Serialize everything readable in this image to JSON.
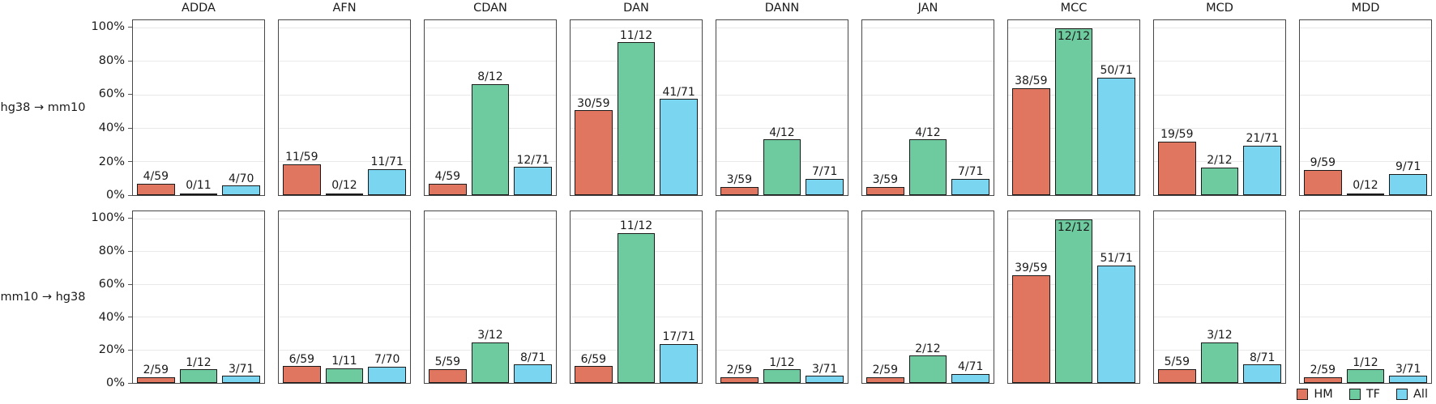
{
  "chart_data": {
    "type": "bar",
    "title": "",
    "description_visible_text_only": true,
    "facet_row_labels": [
      "hg38 → mm10",
      "mm10 → hg38"
    ],
    "columns": [
      "ADDA",
      "AFN",
      "CDAN",
      "DAN",
      "DANN",
      "JAN",
      "MCC",
      "MCD",
      "MDD"
    ],
    "series": [
      {
        "name": "HM",
        "color": "#e0765f"
      },
      {
        "name": "TF",
        "color": "#6ecba0"
      },
      {
        "name": "All",
        "color": "#7ad5f1"
      }
    ],
    "y_ticks": [
      {
        "label": "100%",
        "value": 100
      },
      {
        "label": "80%",
        "value": 80
      },
      {
        "label": "60%",
        "value": 60
      },
      {
        "label": "40%",
        "value": 40
      },
      {
        "label": "20%",
        "value": 20
      },
      {
        "label": "0%",
        "value": 0
      }
    ],
    "ylim": [
      0,
      105
    ],
    "grid": true,
    "legend_position": "bottom-right",
    "bar_label_format": "successes/total",
    "rows": [
      {
        "label": "hg38 → mm10",
        "panels": [
          {
            "column": "ADDA",
            "bars": [
              {
                "label": "4/59",
                "num": 4,
                "den": 59
              },
              {
                "label": "0/11",
                "num": 0,
                "den": 11
              },
              {
                "label": "4/70",
                "num": 4,
                "den": 70
              }
            ]
          },
          {
            "column": "AFN",
            "bars": [
              {
                "label": "11/59",
                "num": 11,
                "den": 59
              },
              {
                "label": "0/12",
                "num": 0,
                "den": 12
              },
              {
                "label": "11/71",
                "num": 11,
                "den": 71
              }
            ]
          },
          {
            "column": "CDAN",
            "bars": [
              {
                "label": "4/59",
                "num": 4,
                "den": 59
              },
              {
                "label": "8/12",
                "num": 8,
                "den": 12
              },
              {
                "label": "12/71",
                "num": 12,
                "den": 71
              }
            ]
          },
          {
            "column": "DAN",
            "bars": [
              {
                "label": "30/59",
                "num": 30,
                "den": 59
              },
              {
                "label": "11/12",
                "num": 11,
                "den": 12
              },
              {
                "label": "41/71",
                "num": 41,
                "den": 71
              }
            ]
          },
          {
            "column": "DANN",
            "bars": [
              {
                "label": "3/59",
                "num": 3,
                "den": 59
              },
              {
                "label": "4/12",
                "num": 4,
                "den": 12
              },
              {
                "label": "7/71",
                "num": 7,
                "den": 71
              }
            ]
          },
          {
            "column": "JAN",
            "bars": [
              {
                "label": "3/59",
                "num": 3,
                "den": 59
              },
              {
                "label": "4/12",
                "num": 4,
                "den": 12
              },
              {
                "label": "7/71",
                "num": 7,
                "den": 71
              }
            ]
          },
          {
            "column": "MCC",
            "bars": [
              {
                "label": "38/59",
                "num": 38,
                "den": 59
              },
              {
                "label": "12/12",
                "num": 12,
                "den": 12
              },
              {
                "label": "50/71",
                "num": 50,
                "den": 71
              }
            ]
          },
          {
            "column": "MCD",
            "bars": [
              {
                "label": "19/59",
                "num": 19,
                "den": 59
              },
              {
                "label": "2/12",
                "num": 2,
                "den": 12
              },
              {
                "label": "21/71",
                "num": 21,
                "den": 71
              }
            ]
          },
          {
            "column": "MDD",
            "bars": [
              {
                "label": "9/59",
                "num": 9,
                "den": 59
              },
              {
                "label": "0/12",
                "num": 0,
                "den": 12
              },
              {
                "label": "9/71",
                "num": 9,
                "den": 71
              }
            ]
          }
        ]
      },
      {
        "label": "mm10 → hg38",
        "panels": [
          {
            "column": "ADDA",
            "bars": [
              {
                "label": "2/59",
                "num": 2,
                "den": 59
              },
              {
                "label": "1/12",
                "num": 1,
                "den": 12
              },
              {
                "label": "3/71",
                "num": 3,
                "den": 71
              }
            ]
          },
          {
            "column": "AFN",
            "bars": [
              {
                "label": "6/59",
                "num": 6,
                "den": 59
              },
              {
                "label": "1/11",
                "num": 1,
                "den": 11
              },
              {
                "label": "7/70",
                "num": 7,
                "den": 70
              }
            ]
          },
          {
            "column": "CDAN",
            "bars": [
              {
                "label": "5/59",
                "num": 5,
                "den": 59
              },
              {
                "label": "3/12",
                "num": 3,
                "den": 12
              },
              {
                "label": "8/71",
                "num": 8,
                "den": 71
              }
            ]
          },
          {
            "column": "DAN",
            "bars": [
              {
                "label": "6/59",
                "num": 6,
                "den": 59
              },
              {
                "label": "11/12",
                "num": 11,
                "den": 12
              },
              {
                "label": "17/71",
                "num": 17,
                "den": 71
              }
            ]
          },
          {
            "column": "DANN",
            "bars": [
              {
                "label": "2/59",
                "num": 2,
                "den": 59
              },
              {
                "label": "1/12",
                "num": 1,
                "den": 12
              },
              {
                "label": "3/71",
                "num": 3,
                "den": 71
              }
            ]
          },
          {
            "column": "JAN",
            "bars": [
              {
                "label": "2/59",
                "num": 2,
                "den": 59
              },
              {
                "label": "2/12",
                "num": 2,
                "den": 12
              },
              {
                "label": "4/71",
                "num": 4,
                "den": 71
              }
            ]
          },
          {
            "column": "MCC",
            "bars": [
              {
                "label": "39/59",
                "num": 39,
                "den": 59
              },
              {
                "label": "12/12",
                "num": 12,
                "den": 12
              },
              {
                "label": "51/71",
                "num": 51,
                "den": 71
              }
            ]
          },
          {
            "column": "MCD",
            "bars": [
              {
                "label": "5/59",
                "num": 5,
                "den": 59
              },
              {
                "label": "3/12",
                "num": 3,
                "den": 12
              },
              {
                "label": "8/71",
                "num": 8,
                "den": 71
              }
            ]
          },
          {
            "column": "MDD",
            "bars": [
              {
                "label": "2/59",
                "num": 2,
                "den": 59
              },
              {
                "label": "1/12",
                "num": 1,
                "den": 12
              },
              {
                "label": "3/71",
                "num": 3,
                "den": 71
              }
            ]
          }
        ]
      }
    ]
  },
  "legend": {
    "items": [
      "HM",
      "TF",
      "All"
    ]
  },
  "colors": {
    "hm": "#e0765f",
    "tf": "#6ecba0",
    "all": "#7ad5f1",
    "panel_border": "#474747",
    "bar_border": "#1a1a1a",
    "gridline": "#e9e9e9"
  }
}
